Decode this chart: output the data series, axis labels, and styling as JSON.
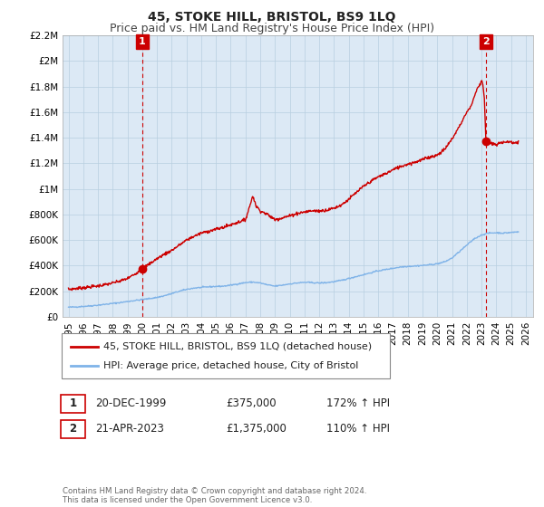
{
  "title": "45, STOKE HILL, BRISTOL, BS9 1LQ",
  "subtitle": "Price paid vs. HM Land Registry's House Price Index (HPI)",
  "ylim": [
    0,
    2200000
  ],
  "yticks": [
    0,
    200000,
    400000,
    600000,
    800000,
    1000000,
    1200000,
    1400000,
    1600000,
    1800000,
    2000000,
    2200000
  ],
  "ytick_labels": [
    "£0",
    "£200K",
    "£400K",
    "£600K",
    "£800K",
    "£1M",
    "£1.2M",
    "£1.4M",
    "£1.6M",
    "£1.8M",
    "£2M",
    "£2.2M"
  ],
  "xlim_start": 1994.6,
  "xlim_end": 2026.5,
  "x_tick_years": [
    1995,
    1996,
    1997,
    1998,
    1999,
    2000,
    2001,
    2002,
    2003,
    2004,
    2005,
    2006,
    2007,
    2008,
    2009,
    2010,
    2011,
    2012,
    2013,
    2014,
    2015,
    2016,
    2017,
    2018,
    2019,
    2020,
    2021,
    2022,
    2023,
    2024,
    2025,
    2026
  ],
  "hpi_color": "#7fb3e8",
  "sale_color": "#cc0000",
  "marker_color": "#cc0000",
  "dashed_line_color": "#cc0000",
  "annotation_box_color": "#cc0000",
  "plot_bg_color": "#dce9f5",
  "background_color": "#ffffff",
  "grid_color": "#b8cfe0",
  "legend_label_sale": "45, STOKE HILL, BRISTOL, BS9 1LQ (detached house)",
  "legend_label_hpi": "HPI: Average price, detached house, City of Bristol",
  "sale1_label": "1",
  "sale1_date": "20-DEC-1999",
  "sale1_price": "£375,000",
  "sale1_hpi": "172% ↑ HPI",
  "sale1_x": 2000.0,
  "sale1_y": 375000,
  "sale2_label": "2",
  "sale2_date": "21-APR-2023",
  "sale2_price": "£1,375,000",
  "sale2_hpi": "110% ↑ HPI",
  "sale2_x": 2023.3,
  "sale2_y": 1375000,
  "copyright_text": "Contains HM Land Registry data © Crown copyright and database right 2024.\nThis data is licensed under the Open Government Licence v3.0.",
  "title_fontsize": 10,
  "subtitle_fontsize": 9,
  "axis_fontsize": 7.5,
  "legend_fontsize": 8,
  "annotation_fontsize": 8,
  "hpi_anchors": [
    [
      1995.0,
      75000
    ],
    [
      1995.5,
      78000
    ],
    [
      1996.0,
      82000
    ],
    [
      1996.5,
      86000
    ],
    [
      1997.0,
      92000
    ],
    [
      1997.5,
      98000
    ],
    [
      1998.0,
      105000
    ],
    [
      1998.5,
      112000
    ],
    [
      1999.0,
      120000
    ],
    [
      1999.5,
      128000
    ],
    [
      2000.0,
      135000
    ],
    [
      2000.5,
      143000
    ],
    [
      2001.0,
      152000
    ],
    [
      2001.5,
      165000
    ],
    [
      2002.0,
      182000
    ],
    [
      2002.5,
      200000
    ],
    [
      2003.0,
      215000
    ],
    [
      2003.5,
      225000
    ],
    [
      2004.0,
      230000
    ],
    [
      2004.5,
      235000
    ],
    [
      2005.0,
      238000
    ],
    [
      2005.5,
      240000
    ],
    [
      2006.0,
      248000
    ],
    [
      2006.5,
      258000
    ],
    [
      2007.0,
      268000
    ],
    [
      2007.5,
      272000
    ],
    [
      2008.0,
      265000
    ],
    [
      2008.5,
      250000
    ],
    [
      2009.0,
      240000
    ],
    [
      2009.5,
      248000
    ],
    [
      2010.0,
      258000
    ],
    [
      2010.5,
      265000
    ],
    [
      2011.0,
      270000
    ],
    [
      2011.5,
      268000
    ],
    [
      2012.0,
      265000
    ],
    [
      2012.5,
      268000
    ],
    [
      2013.0,
      275000
    ],
    [
      2013.5,
      285000
    ],
    [
      2014.0,
      300000
    ],
    [
      2014.5,
      315000
    ],
    [
      2015.0,
      330000
    ],
    [
      2015.5,
      345000
    ],
    [
      2016.0,
      360000
    ],
    [
      2016.5,
      370000
    ],
    [
      2017.0,
      380000
    ],
    [
      2017.5,
      390000
    ],
    [
      2018.0,
      395000
    ],
    [
      2018.5,
      398000
    ],
    [
      2019.0,
      402000
    ],
    [
      2019.5,
      408000
    ],
    [
      2020.0,
      415000
    ],
    [
      2020.5,
      430000
    ],
    [
      2021.0,
      460000
    ],
    [
      2021.5,
      510000
    ],
    [
      2022.0,
      560000
    ],
    [
      2022.5,
      610000
    ],
    [
      2023.0,
      640000
    ],
    [
      2023.3,
      650000
    ],
    [
      2023.5,
      655000
    ],
    [
      2024.0,
      658000
    ],
    [
      2024.5,
      655000
    ],
    [
      2025.0,
      660000
    ],
    [
      2025.5,
      665000
    ]
  ],
  "red_anchors": [
    [
      1995.0,
      215000
    ],
    [
      1995.5,
      222000
    ],
    [
      1996.0,
      228000
    ],
    [
      1996.5,
      235000
    ],
    [
      1997.0,
      242000
    ],
    [
      1997.5,
      252000
    ],
    [
      1998.0,
      265000
    ],
    [
      1998.5,
      280000
    ],
    [
      1999.0,
      300000
    ],
    [
      1999.5,
      335000
    ],
    [
      2000.0,
      375000
    ],
    [
      2000.5,
      415000
    ],
    [
      2001.0,
      455000
    ],
    [
      2001.5,
      490000
    ],
    [
      2002.0,
      520000
    ],
    [
      2002.5,
      560000
    ],
    [
      2003.0,
      600000
    ],
    [
      2003.5,
      630000
    ],
    [
      2004.0,
      655000
    ],
    [
      2004.5,
      670000
    ],
    [
      2005.0,
      685000
    ],
    [
      2005.5,
      700000
    ],
    [
      2006.0,
      720000
    ],
    [
      2006.5,
      740000
    ],
    [
      2007.0,
      760000
    ],
    [
      2007.3,
      870000
    ],
    [
      2007.5,
      950000
    ],
    [
      2007.7,
      870000
    ],
    [
      2008.0,
      830000
    ],
    [
      2008.5,
      800000
    ],
    [
      2009.0,
      760000
    ],
    [
      2009.5,
      775000
    ],
    [
      2010.0,
      790000
    ],
    [
      2010.5,
      810000
    ],
    [
      2011.0,
      820000
    ],
    [
      2011.5,
      830000
    ],
    [
      2012.0,
      828000
    ],
    [
      2012.5,
      835000
    ],
    [
      2013.0,
      850000
    ],
    [
      2013.5,
      875000
    ],
    [
      2014.0,
      920000
    ],
    [
      2014.5,
      970000
    ],
    [
      2015.0,
      1020000
    ],
    [
      2015.5,
      1060000
    ],
    [
      2016.0,
      1095000
    ],
    [
      2016.5,
      1120000
    ],
    [
      2017.0,
      1150000
    ],
    [
      2017.5,
      1175000
    ],
    [
      2018.0,
      1195000
    ],
    [
      2018.5,
      1210000
    ],
    [
      2019.0,
      1230000
    ],
    [
      2019.5,
      1250000
    ],
    [
      2020.0,
      1265000
    ],
    [
      2020.5,
      1310000
    ],
    [
      2021.0,
      1390000
    ],
    [
      2021.5,
      1490000
    ],
    [
      2022.0,
      1600000
    ],
    [
      2022.3,
      1650000
    ],
    [
      2022.5,
      1720000
    ],
    [
      2022.7,
      1780000
    ],
    [
      2022.9,
      1820000
    ],
    [
      2023.0,
      1850000
    ],
    [
      2023.1,
      1820000
    ],
    [
      2023.2,
      1700000
    ],
    [
      2023.3,
      1375000
    ],
    [
      2023.5,
      1360000
    ],
    [
      2023.8,
      1350000
    ],
    [
      2024.0,
      1345000
    ],
    [
      2024.3,
      1360000
    ],
    [
      2024.5,
      1370000
    ],
    [
      2025.0,
      1365000
    ],
    [
      2025.5,
      1360000
    ]
  ]
}
